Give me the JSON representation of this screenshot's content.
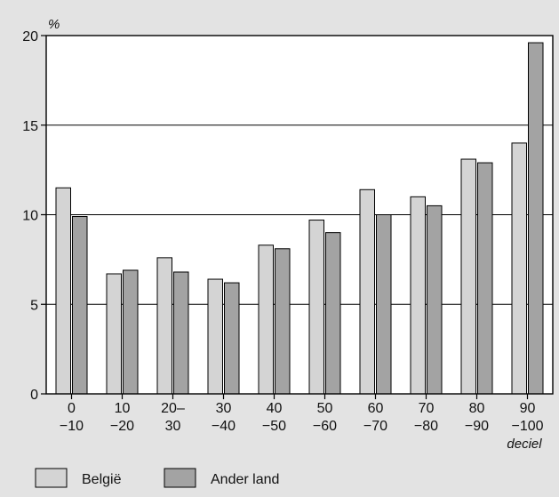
{
  "chart_data": {
    "type": "bar",
    "y_unit": "%",
    "x_unit": "deciel",
    "categories": [
      [
        "0",
        "−10"
      ],
      [
        "10",
        "−20"
      ],
      [
        "20–",
        "30"
      ],
      [
        "30",
        "−40"
      ],
      [
        "40",
        "−50"
      ],
      [
        "50",
        "−60"
      ],
      [
        "60",
        "−70"
      ],
      [
        "70",
        "−80"
      ],
      [
        "80",
        "−90"
      ],
      [
        "90",
        "−100"
      ]
    ],
    "series": [
      {
        "name": "België",
        "color": "#d4d4d4",
        "values": [
          11.5,
          6.7,
          7.6,
          6.4,
          8.3,
          9.7,
          11.4,
          11.0,
          13.1,
          14.0
        ]
      },
      {
        "name": "Ander land",
        "color": "#a3a3a3",
        "values": [
          9.9,
          6.9,
          6.8,
          6.2,
          8.1,
          9.0,
          10.0,
          10.5,
          12.9,
          19.6
        ]
      }
    ],
    "ylim": [
      0,
      20
    ],
    "yticks": [
      "0",
      "5",
      "10",
      "15",
      "20"
    ],
    "grid": true,
    "legend_position": "bottom-left"
  }
}
